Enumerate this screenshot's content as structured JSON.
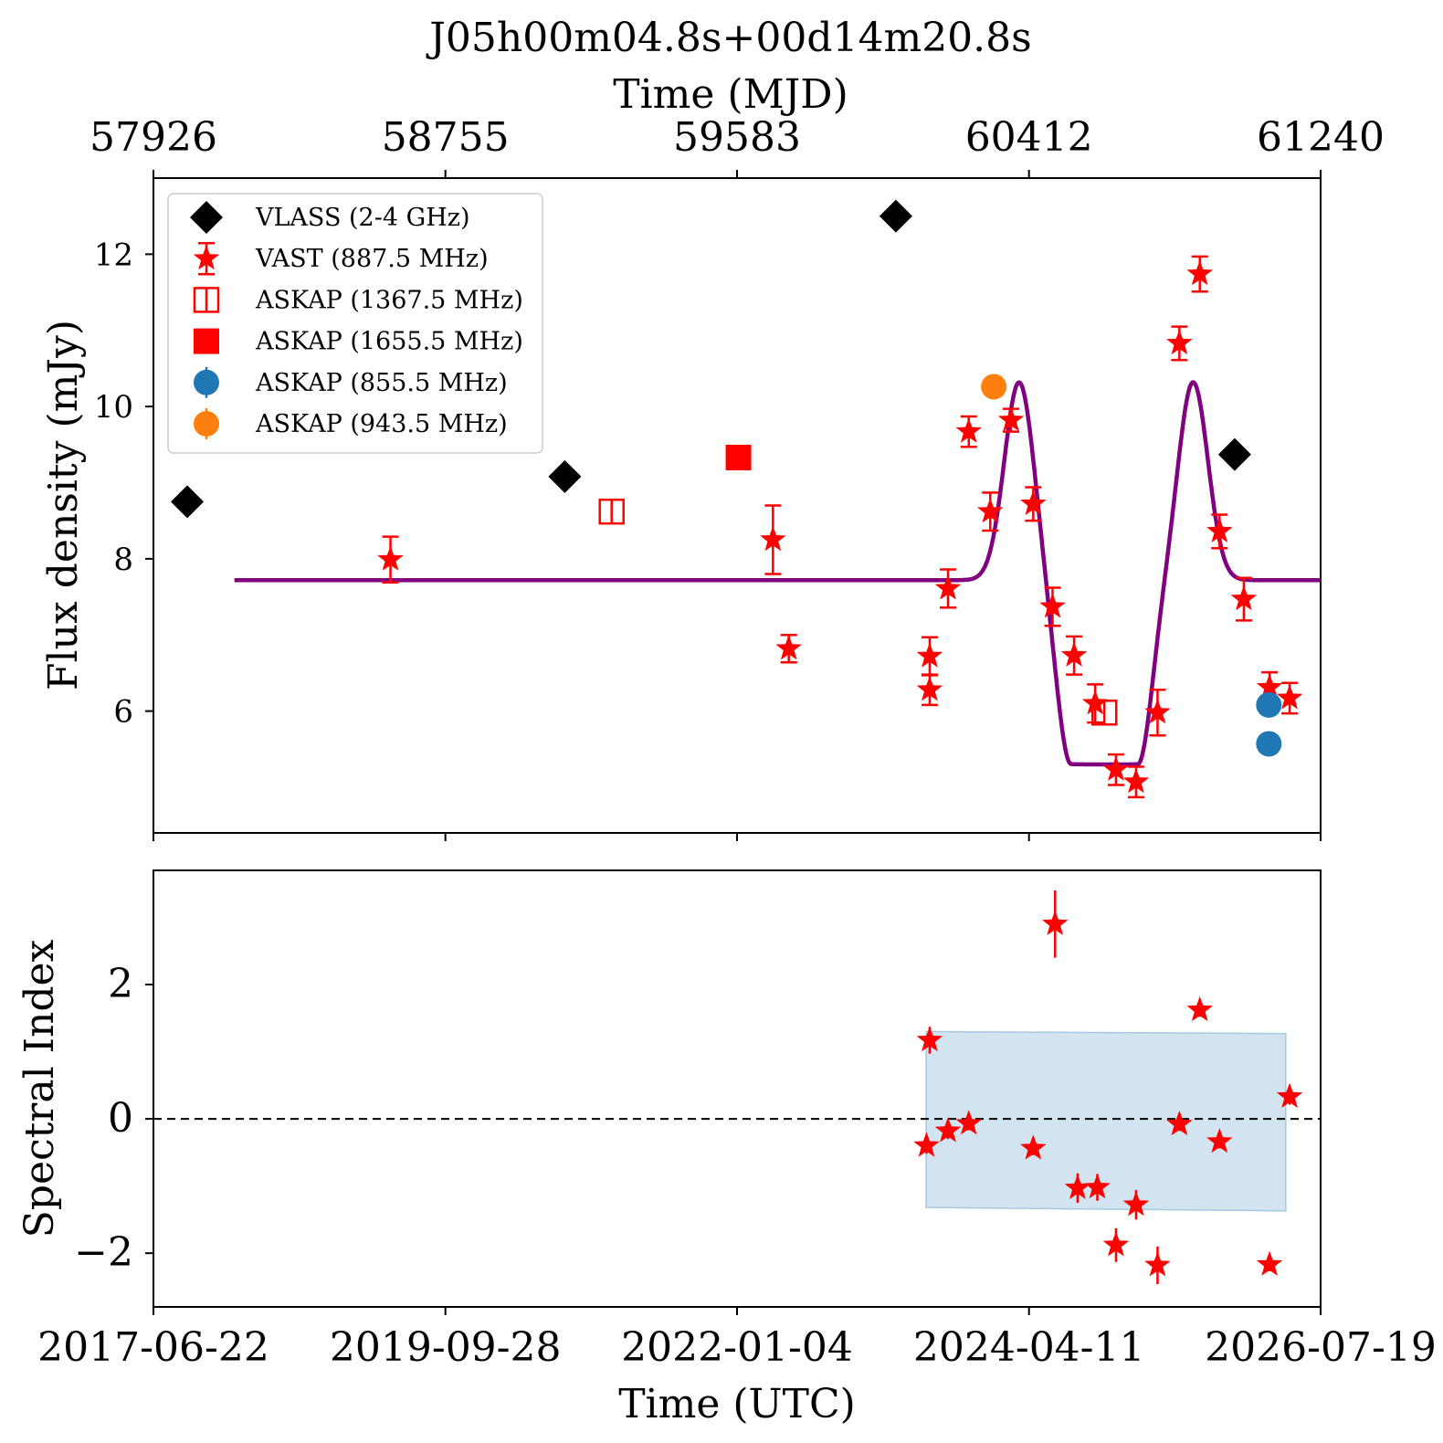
{
  "chart_data": [
    {
      "type": "scatter",
      "title": "J05h00m04.8s+00d14m20.8s",
      "xlabel_top": "Time (MJD)",
      "top_ticks": [
        "57926",
        "58755",
        "59583",
        "60412",
        "61240"
      ],
      "ylabel": "Flux density (mJy)",
      "yticks": [
        "6",
        "8",
        "10",
        "12"
      ],
      "ylim": [
        4.4,
        13.0
      ],
      "xlim_mjd": [
        57926,
        61240
      ],
      "legend_position": "upper-left",
      "series": [
        {
          "name": "VLASS (2-4 GHz)",
          "marker": "diamond",
          "color": "#000000",
          "points": [
            {
              "mjd": 58022,
              "y": 8.75
            },
            {
              "mjd": 59094,
              "y": 9.08
            },
            {
              "mjd": 60034,
              "y": 12.5
            },
            {
              "mjd": 60996,
              "y": 9.37
            }
          ]
        },
        {
          "name": "VAST (887.5 MHz)",
          "marker": "star",
          "color": "#ff0000",
          "points": [
            {
              "mjd": 58599,
              "y": 7.99,
              "err": 0.3
            },
            {
              "mjd": 59685,
              "y": 8.25,
              "err": 0.45
            },
            {
              "mjd": 59730,
              "y": 6.82,
              "err": 0.18
            },
            {
              "mjd": 60130,
              "y": 6.72,
              "err": 0.25
            },
            {
              "mjd": 60130,
              "y": 6.28,
              "err": 0.2
            },
            {
              "mjd": 60182,
              "y": 7.61,
              "err": 0.25
            },
            {
              "mjd": 60241,
              "y": 9.67,
              "err": 0.2
            },
            {
              "mjd": 60302,
              "y": 8.62,
              "err": 0.25
            },
            {
              "mjd": 60361,
              "y": 9.82,
              "err": 0.15
            },
            {
              "mjd": 60424,
              "y": 8.72,
              "err": 0.22
            },
            {
              "mjd": 60479,
              "y": 7.37,
              "err": 0.25
            },
            {
              "mjd": 60540,
              "y": 6.73,
              "err": 0.25
            },
            {
              "mjd": 60600,
              "y": 6.1,
              "err": 0.25
            },
            {
              "mjd": 60659,
              "y": 5.23,
              "err": 0.2
            },
            {
              "mjd": 60716,
              "y": 5.07,
              "err": 0.2
            },
            {
              "mjd": 60777,
              "y": 5.98,
              "err": 0.3
            },
            {
              "mjd": 60839,
              "y": 10.83,
              "err": 0.22
            },
            {
              "mjd": 60897,
              "y": 11.74,
              "err": 0.23
            },
            {
              "mjd": 60953,
              "y": 8.36,
              "err": 0.22
            },
            {
              "mjd": 61022,
              "y": 7.47,
              "err": 0.28
            },
            {
              "mjd": 61095,
              "y": 6.31,
              "err": 0.2
            },
            {
              "mjd": 61152,
              "y": 6.17,
              "err": 0.2
            }
          ]
        },
        {
          "name": "ASKAP (1367.5 MHz)",
          "marker": "open-square",
          "color": "#ff0000",
          "points": [
            {
              "mjd": 59227,
              "y": 8.62
            },
            {
              "mjd": 60626,
              "y": 5.98
            }
          ]
        },
        {
          "name": "ASKAP (1655.5 MHz)",
          "marker": "square",
          "color": "#ff0000",
          "points": [
            {
              "mjd": 59587,
              "y": 9.33
            }
          ]
        },
        {
          "name": "ASKAP (855.5 MHz)",
          "marker": "circle",
          "color": "#1f77b4",
          "points": [
            {
              "mjd": 61093,
              "y": 6.08,
              "err": 0.12
            },
            {
              "mjd": 61093,
              "y": 5.57,
              "err": 0.12
            }
          ]
        },
        {
          "name": "ASKAP (943.5 MHz)",
          "marker": "circle",
          "color": "#ff7f0e",
          "points": [
            {
              "mjd": 60312,
              "y": 10.26,
              "err": 0.15
            }
          ]
        }
      ],
      "model_curve": {
        "color": "#800080",
        "baseline": 7.72,
        "xrange_mjd": [
          58156,
          61240
        ],
        "bumps": [
          {
            "center": 60384,
            "amplitude": 2.6,
            "sigma": 42
          },
          {
            "center": 60878,
            "amplitude": 2.6,
            "sigma": 42
          }
        ],
        "dips": [
          {
            "center": 60626,
            "depth": 2.42,
            "halfwidth": 95,
            "edge": 40
          }
        ]
      }
    },
    {
      "type": "scatter",
      "ylabel": "Spectral Index",
      "xlabel": "Time (UTC)",
      "bottom_ticks": [
        "2017-06-22",
        "2019-09-28",
        "2022-01-04",
        "2024-04-11",
        "2026-07-19"
      ],
      "yticks": [
        "−2",
        "0",
        "2"
      ],
      "ylim": [
        -2.8,
        3.7
      ],
      "reference_line": 0,
      "band": {
        "color": "#b9d5e8",
        "points": [
          {
            "mjd": 60120,
            "upper": 1.3,
            "lower": -1.32
          },
          {
            "mjd": 61141,
            "upper": 1.27,
            "lower": -1.37
          }
        ]
      },
      "series": [
        {
          "name": "Spectral index",
          "marker": "star",
          "color": "#ff0000",
          "points": [
            {
              "mjd": 60130,
              "y": 1.17,
              "err": 0.2
            },
            {
              "mjd": 60121,
              "y": -0.4,
              "err": 0.12
            },
            {
              "mjd": 60182,
              "y": -0.18,
              "err": 0.12
            },
            {
              "mjd": 60241,
              "y": -0.07,
              "err": 0.1
            },
            {
              "mjd": 60424,
              "y": -0.44,
              "err": 0.1
            },
            {
              "mjd": 60486,
              "y": 2.9,
              "err": 0.5
            },
            {
              "mjd": 60550,
              "y": -1.03,
              "err": 0.22
            },
            {
              "mjd": 60606,
              "y": -1.02,
              "err": 0.2
            },
            {
              "mjd": 60659,
              "y": -1.88,
              "err": 0.25
            },
            {
              "mjd": 60716,
              "y": -1.28,
              "err": 0.22
            },
            {
              "mjd": 60777,
              "y": -2.18,
              "err": 0.28
            },
            {
              "mjd": 60839,
              "y": -0.08,
              "err": 0.1
            },
            {
              "mjd": 60897,
              "y": 1.62,
              "err": 0.1
            },
            {
              "mjd": 60953,
              "y": -0.34,
              "err": 0.1
            },
            {
              "mjd": 61095,
              "y": -2.17,
              "err": 0.1
            },
            {
              "mjd": 61152,
              "y": 0.33,
              "err": 0.12
            }
          ]
        }
      ]
    }
  ]
}
